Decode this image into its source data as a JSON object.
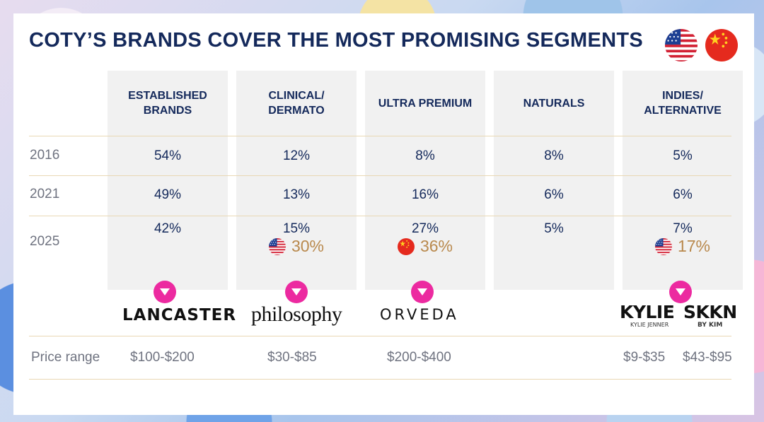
{
  "title": "COTY’S BRANDS COVER THE MOST PROMISING SEGMENTS",
  "flags": [
    "us-flag",
    "china-flag"
  ],
  "colors": {
    "navy": "#14295b",
    "gold": "#b9894d",
    "pink": "#ec2aa0",
    "column_bg": "#f1f1f1"
  },
  "columns": [
    {
      "header_line1": "ESTABLISHED",
      "header_line2": "BRANDS",
      "y2016": "54%",
      "y2021": "49%",
      "y2025": "42%",
      "sub_value": ""
    },
    {
      "header_line1": "CLINICAL/",
      "header_line2": "DERMATO",
      "y2016": "12%",
      "y2021": "13%",
      "y2025": "15%",
      "sub_flag": "us-flag",
      "sub_value": "30%"
    },
    {
      "header_line1": "ULTRA PREMIUM",
      "header_line2": "",
      "y2016": "8%",
      "y2021": "16%",
      "y2025": "27%",
      "sub_flag": "china-flag",
      "sub_value": "36%"
    },
    {
      "header_line1": "NATURALS",
      "header_line2": "",
      "y2016": "8%",
      "y2021": "6%",
      "y2025": "5%",
      "sub_value": ""
    },
    {
      "header_line1": "INDIES/",
      "header_line2": "ALTERNATIVE",
      "y2016": "5%",
      "y2021": "6%",
      "y2025": "7%",
      "sub_flag": "us-flag",
      "sub_value": "17%"
    }
  ],
  "years": [
    "2016",
    "2021",
    "2025"
  ],
  "brands": {
    "lancaster": "LANCASTER",
    "philosophy": "philosophy",
    "orveda": "ORVEDA",
    "kylie": "KYLIE",
    "kylie_small": "KYLIE JENNER",
    "skkn": "SKKN",
    "skkn_small": "BY KIM"
  },
  "price_range": {
    "label": "Price range",
    "lancaster": "$100-$200",
    "philosophy": "$30-$85",
    "orveda": "$200-$400",
    "kylie": "$9-$35",
    "skkn": "$43-$95"
  }
}
